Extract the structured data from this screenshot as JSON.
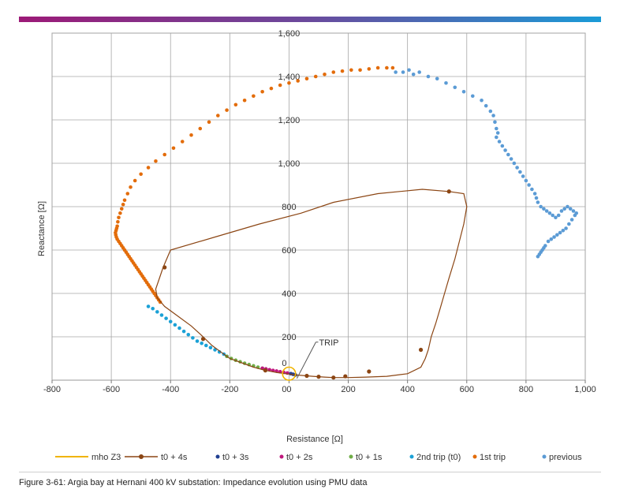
{
  "caption": "Figure 3-61: Argia bay at Hernani 400 kV substation: Impedance evolution using PMU data",
  "chart_data": {
    "type": "scatter",
    "xlabel": "Resistance [Ω]",
    "ylabel": "Reactance [Ω]",
    "xlim": [
      -800,
      1000
    ],
    "ylim": [
      0,
      1600
    ],
    "x_ticks": [
      "-800",
      "-600",
      "-400",
      "-200",
      "0",
      "200",
      "400",
      "600",
      "800",
      "1,000"
    ],
    "y_ticks": [
      "0",
      "200",
      "400",
      "600",
      "800",
      "1,000",
      "1,200",
      "1,400",
      "1,600"
    ],
    "x_zero_label": "0",
    "grid": true,
    "annotation": {
      "text": "TRIP",
      "x": 0,
      "y": 30
    },
    "legend_position": "bottom",
    "series": [
      {
        "name": "previous",
        "style": "points",
        "color": "#5b9bd5",
        "x": [
          360,
          385,
          405,
          420,
          440,
          470,
          500,
          530,
          560,
          590,
          620,
          650,
          665,
          680,
          690,
          695,
          700,
          705,
          700,
          710,
          720,
          730,
          740,
          750,
          760,
          770,
          780,
          790,
          800,
          810,
          820,
          830,
          835,
          840,
          850,
          860,
          870,
          880,
          890,
          900,
          910,
          920,
          930,
          940,
          950,
          960,
          970,
          965,
          955,
          945,
          935,
          925,
          915,
          905,
          895,
          885,
          875,
          865,
          860,
          855,
          850,
          845,
          840
        ],
        "y": [
          1420,
          1420,
          1430,
          1410,
          1420,
          1400,
          1390,
          1370,
          1350,
          1330,
          1310,
          1290,
          1265,
          1240,
          1220,
          1190,
          1160,
          1140,
          1120,
          1100,
          1080,
          1060,
          1040,
          1020,
          1000,
          980,
          960,
          940,
          920,
          900,
          880,
          860,
          840,
          820,
          800,
          790,
          780,
          770,
          760,
          750,
          760,
          780,
          790,
          800,
          790,
          780,
          770,
          760,
          740,
          720,
          700,
          690,
          680,
          670,
          660,
          650,
          640,
          620,
          610,
          600,
          590,
          580,
          570
        ]
      },
      {
        "name": "1st trip",
        "style": "points",
        "color": "#e36c0a",
        "x": [
          350,
          330,
          300,
          270,
          240,
          210,
          180,
          150,
          120,
          90,
          60,
          30,
          0,
          -30,
          -60,
          -90,
          -120,
          -150,
          -180,
          -210,
          -240,
          -270,
          -300,
          -330,
          -360,
          -390,
          -420,
          -450,
          -475,
          -500,
          -520,
          -535,
          -545,
          -555,
          -560,
          -565,
          -570,
          -575,
          -578,
          -580,
          -582,
          -584,
          -586,
          -585,
          -583,
          -580,
          -575,
          -570,
          -565,
          -560,
          -555,
          -550,
          -545,
          -540,
          -535,
          -530,
          -525,
          -520,
          -515,
          -510,
          -505,
          -500,
          -495,
          -490,
          -485,
          -480,
          -475,
          -470,
          -465,
          -460,
          -455,
          -450,
          -445,
          -440,
          -435
        ],
        "y": [
          1440,
          1440,
          1440,
          1435,
          1430,
          1430,
          1425,
          1420,
          1410,
          1400,
          1390,
          1380,
          1370,
          1360,
          1345,
          1330,
          1310,
          1290,
          1270,
          1245,
          1220,
          1190,
          1160,
          1130,
          1100,
          1070,
          1040,
          1010,
          980,
          950,
          920,
          890,
          860,
          830,
          810,
          790,
          770,
          750,
          730,
          710,
          700,
          690,
          680,
          670,
          660,
          650,
          640,
          630,
          620,
          610,
          600,
          590,
          580,
          570,
          560,
          550,
          540,
          530,
          520,
          510,
          500,
          490,
          480,
          470,
          460,
          450,
          440,
          430,
          420,
          410,
          400,
          390,
          380,
          370,
          360
        ]
      },
      {
        "name": "2nd trip (t0)",
        "style": "points",
        "color": "#1ba1d6",
        "x": [
          -475,
          -460,
          -445,
          -430,
          -415,
          -400,
          -385,
          -370,
          -355,
          -340,
          -325,
          -310,
          -295,
          -280,
          -265,
          -250,
          -235,
          -220,
          -210
        ],
        "y": [
          340,
          330,
          315,
          300,
          285,
          270,
          255,
          240,
          225,
          210,
          195,
          180,
          170,
          160,
          150,
          140,
          130,
          120,
          110
        ]
      },
      {
        "name": "t0 + 1s",
        "style": "points",
        "color": "#70ad47",
        "x": [
          -210,
          -195,
          -180,
          -165,
          -150,
          -135,
          -120,
          -105,
          -90
        ],
        "y": [
          110,
          100,
          92,
          85,
          78,
          72,
          66,
          60,
          55
        ]
      },
      {
        "name": "t0 + 2s",
        "style": "points",
        "color": "#c0177d",
        "x": [
          -90,
          -78,
          -66,
          -54,
          -42,
          -30,
          -18,
          -6,
          6
        ],
        "y": [
          55,
          52,
          48,
          45,
          42,
          39,
          36,
          33,
          30
        ]
      },
      {
        "name": "t0 + 3s",
        "style": "points",
        "color": "#1f3f91",
        "x": [
          6,
          14,
          22
        ],
        "y": [
          30,
          27,
          24
        ]
      },
      {
        "name": "t0 + 4s",
        "style": "line-markers",
        "color": "#8b4513",
        "x": [
          22,
          40,
          60,
          80,
          100,
          120,
          150,
          200,
          260,
          330,
          400,
          445,
          460,
          470,
          480,
          495,
          510,
          525,
          540,
          560,
          575,
          590,
          600,
          590,
          540,
          450,
          300,
          150,
          40,
          -100,
          -250,
          -400,
          -425,
          -440,
          -450,
          -445,
          -420,
          -380,
          -330,
          -290,
          -260,
          -230,
          -200,
          -160,
          -120,
          -80,
          -40,
          0,
          22
        ],
        "y": [
          24,
          22,
          20,
          18,
          16,
          14,
          12,
          12,
          14,
          18,
          30,
          60,
          100,
          140,
          200,
          260,
          330,
          400,
          470,
          560,
          640,
          720,
          800,
          860,
          870,
          880,
          860,
          820,
          770,
          720,
          660,
          600,
          520,
          460,
          420,
          380,
          340,
          300,
          250,
          200,
          160,
          130,
          100,
          80,
          60,
          45,
          35,
          28,
          24
        ],
        "markers_x": [
          60,
          100,
          150,
          190,
          270,
          445,
          540,
          -420,
          -290,
          -80
        ],
        "markers_y": [
          20,
          16,
          12,
          18,
          40,
          140,
          870,
          520,
          190,
          45
        ]
      },
      {
        "name": "mho Z3",
        "style": "circle",
        "color": "#f0b400",
        "center": [
          0,
          30
        ],
        "radius": 22
      }
    ]
  }
}
